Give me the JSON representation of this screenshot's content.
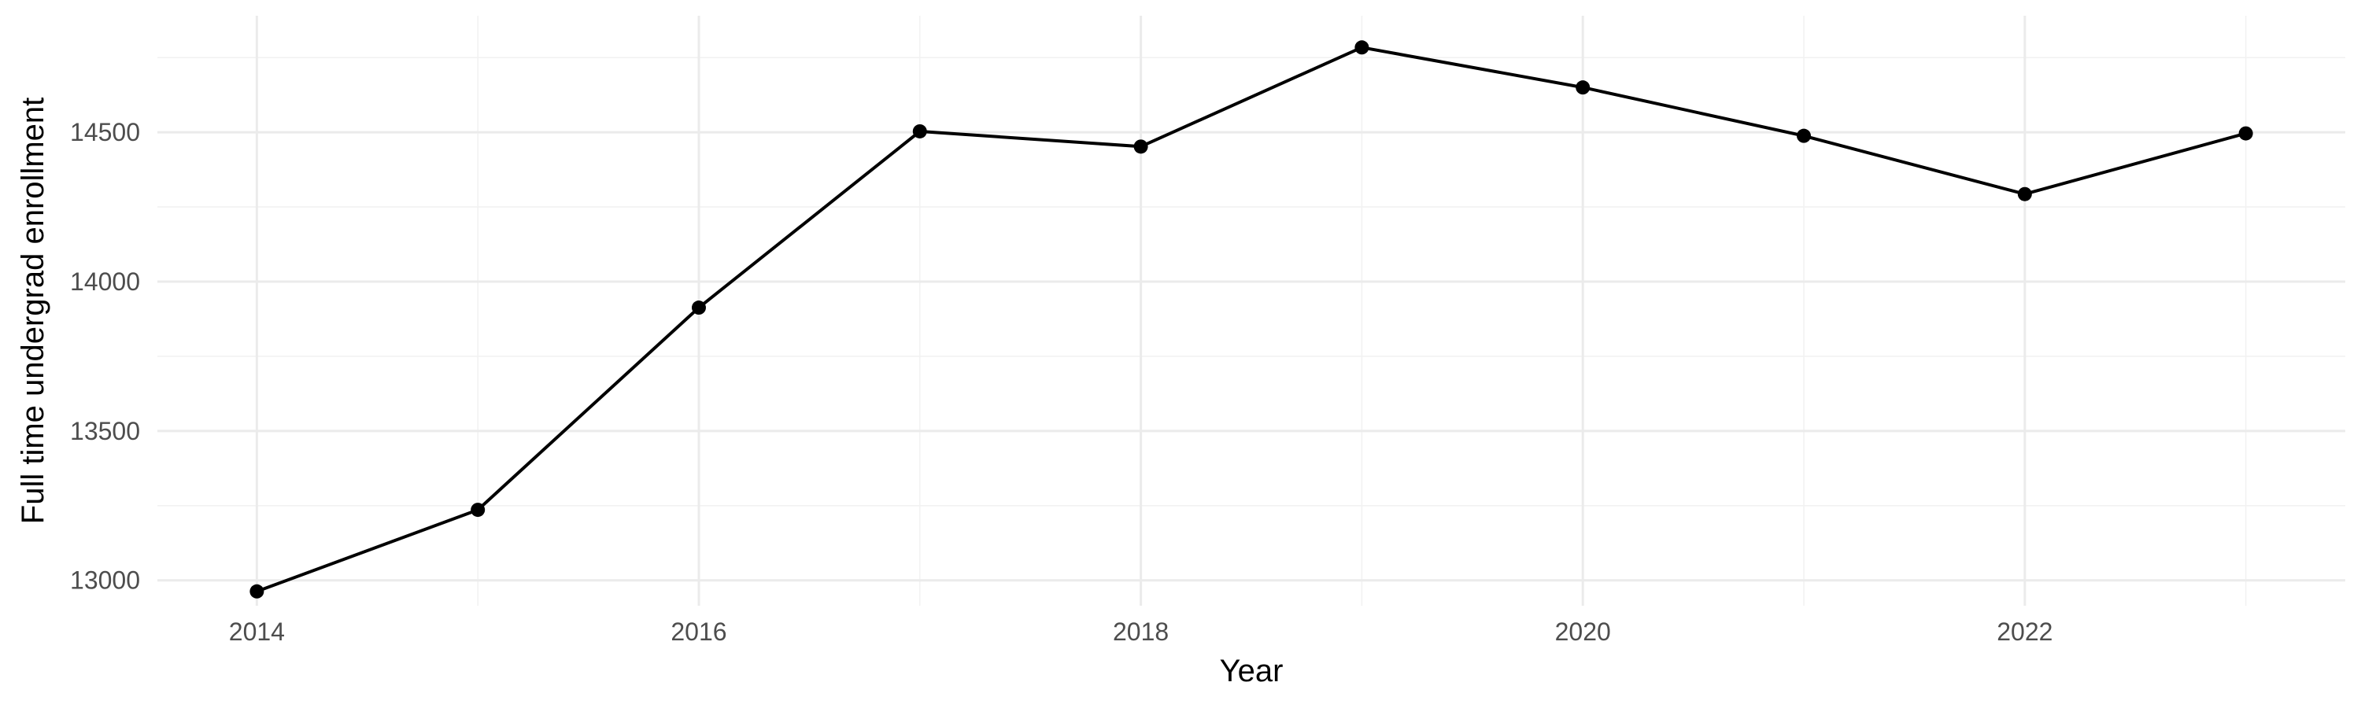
{
  "chart_data": {
    "type": "line",
    "title": "",
    "xlabel": "Year",
    "ylabel": "Full time undergrad enrollment",
    "x": [
      2014,
      2015,
      2016,
      2017,
      2018,
      2019,
      2020,
      2021,
      2022,
      2023
    ],
    "series": [
      {
        "values": [
          12963,
          13236,
          13913,
          14503,
          14452,
          14784,
          14650,
          14488,
          14293,
          14496
        ],
        "color": "#000000"
      }
    ],
    "xlim": [
      2013.55,
      2023.45
    ],
    "ylim": [
      12915,
      14890
    ],
    "x_ticks": [
      2014,
      2016,
      2018,
      2020,
      2022
    ],
    "x_minor_ticks": [
      2015,
      2017,
      2019,
      2021,
      2023
    ],
    "y_ticks": [
      13000,
      13500,
      14000,
      14500
    ],
    "y_minor_ticks": [
      13250,
      13750,
      14250,
      14750
    ],
    "x_tick_labels": [
      "2014",
      "2016",
      "2018",
      "2020",
      "2022"
    ],
    "y_tick_labels": [
      "13000",
      "13500",
      "14000",
      "14500"
    ],
    "grid": true,
    "legend": "none"
  }
}
